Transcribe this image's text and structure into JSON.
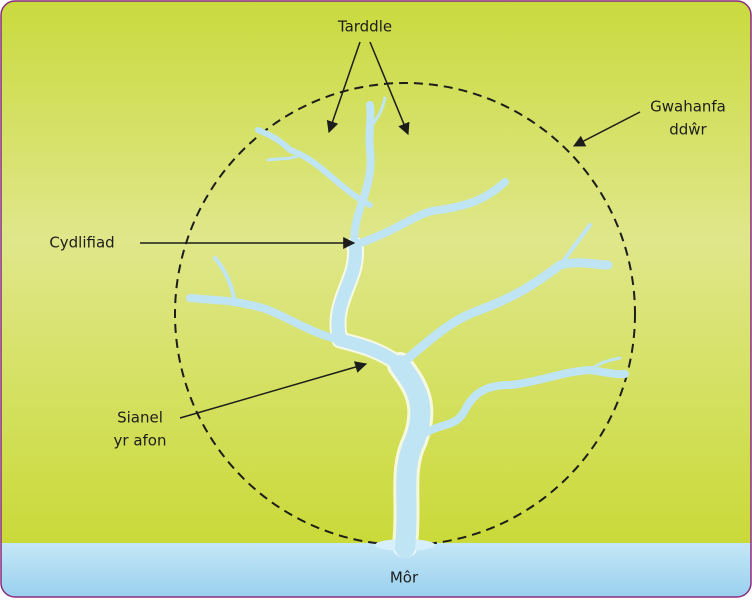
{
  "labels": {
    "source": "Tarddle",
    "watershed": [
      "Gwahanfa",
      "ddŵr"
    ],
    "confluence": "Cydlifiad",
    "channel": [
      "Sianel",
      "yr afon"
    ],
    "sea": "Môr"
  }
}
